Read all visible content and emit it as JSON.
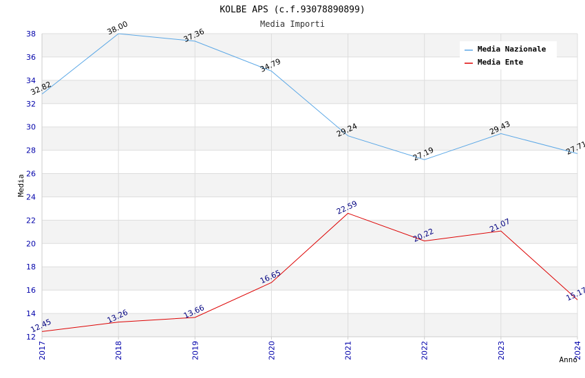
{
  "chart_data": {
    "type": "line",
    "title": "KOLBE APS (c.f.93078890899)",
    "subtitle": "Media Importi",
    "xlabel": "Anno",
    "ylabel": "Media",
    "x": [
      "2017",
      "2018",
      "2019",
      "2020",
      "2021",
      "2022",
      "2023",
      "2024"
    ],
    "ylim": [
      12,
      38
    ],
    "yticks": [
      12,
      14,
      16,
      18,
      20,
      22,
      24,
      26,
      28,
      30,
      32,
      34,
      36,
      38
    ],
    "grid": true,
    "legend_position": "top-right",
    "series": [
      {
        "name": "Media Nazionale",
        "color": "#5aa7e6",
        "label_color": "#000000",
        "values": [
          32.82,
          38.0,
          37.36,
          34.79,
          29.24,
          27.19,
          29.43,
          27.71
        ],
        "labels": [
          "32.82",
          "38.00",
          "37.36",
          "34.79",
          "29.24",
          "27.19",
          "29.43",
          "27.71"
        ]
      },
      {
        "name": "Media Ente",
        "color": "#dd0000",
        "label_color": "#000080",
        "values": [
          12.45,
          13.26,
          13.66,
          16.65,
          22.59,
          20.22,
          21.07,
          15.17
        ],
        "labels": [
          "12.45",
          "13.26",
          "13.66",
          "16.65",
          "22.59",
          "20.22",
          "21.07",
          "15.17"
        ]
      }
    ]
  }
}
